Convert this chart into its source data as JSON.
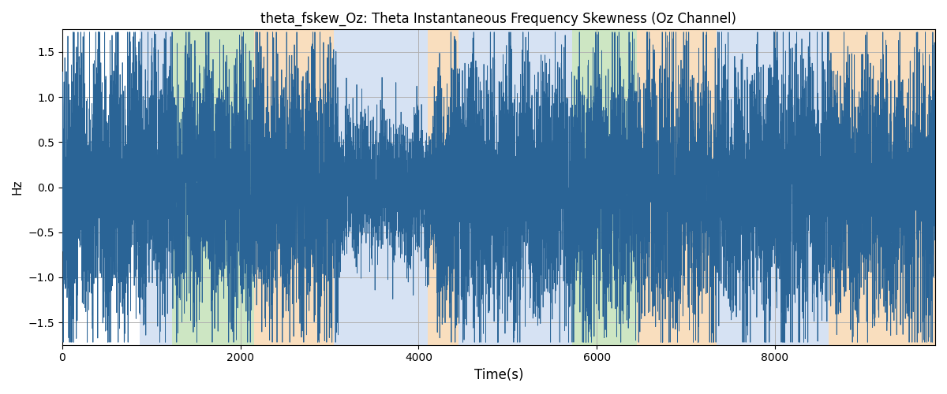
{
  "title": "theta_fskew_Oz: Theta Instantaneous Frequency Skewness (Oz Channel)",
  "xlabel": "Time(s)",
  "ylabel": "Hz",
  "xlim": [
    0,
    9800
  ],
  "ylim": [
    -1.75,
    1.75
  ],
  "line_color": "#2a6496",
  "line_width": 0.6,
  "bg_color": "#ffffff",
  "grid_color": "#b0b0b0",
  "bands": [
    {
      "start": 870,
      "end": 1230,
      "color": "#aec6e8",
      "alpha": 0.5
    },
    {
      "start": 1230,
      "end": 2150,
      "color": "#90c87a",
      "alpha": 0.45
    },
    {
      "start": 2150,
      "end": 3050,
      "color": "#f5c48a",
      "alpha": 0.55
    },
    {
      "start": 3050,
      "end": 4100,
      "color": "#aec6e8",
      "alpha": 0.5
    },
    {
      "start": 4100,
      "end": 4450,
      "color": "#f5c48a",
      "alpha": 0.55
    },
    {
      "start": 4450,
      "end": 5580,
      "color": "#aec6e8",
      "alpha": 0.5
    },
    {
      "start": 5580,
      "end": 5720,
      "color": "#aec6e8",
      "alpha": 0.5
    },
    {
      "start": 5720,
      "end": 6450,
      "color": "#90c87a",
      "alpha": 0.45
    },
    {
      "start": 6450,
      "end": 7350,
      "color": "#f5c48a",
      "alpha": 0.55
    },
    {
      "start": 7350,
      "end": 8600,
      "color": "#aec6e8",
      "alpha": 0.5
    },
    {
      "start": 8600,
      "end": 9800,
      "color": "#f5c48a",
      "alpha": 0.55
    }
  ],
  "yticks": [
    -1.5,
    -1.0,
    -0.5,
    0.0,
    0.5,
    1.0,
    1.5
  ],
  "xticks": [
    0,
    2000,
    4000,
    6000,
    8000
  ],
  "seed": 42,
  "n_points": 9800
}
